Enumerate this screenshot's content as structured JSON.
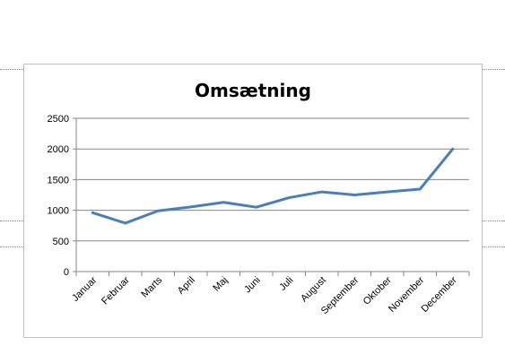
{
  "chart_data": {
    "type": "line",
    "title": "Omsætning",
    "categories": [
      "Januar",
      "Februar",
      "Marts",
      "April",
      "Maj",
      "Juni",
      "Juli",
      "August",
      "September",
      "Oktober",
      "November",
      "December"
    ],
    "series": [
      {
        "values": [
          960,
          790,
          990,
          1055,
          1130,
          1050,
          1205,
          1300,
          1250,
          1300,
          1345,
          2000
        ]
      }
    ],
    "ylim": [
      0,
      2500
    ],
    "yticks": [
      0,
      500,
      1000,
      1500,
      2000,
      2500
    ],
    "grid": true,
    "legend": "none",
    "colors": {
      "line": "#4a7ebb",
      "grid": "#868686",
      "axis": "#868686"
    }
  }
}
